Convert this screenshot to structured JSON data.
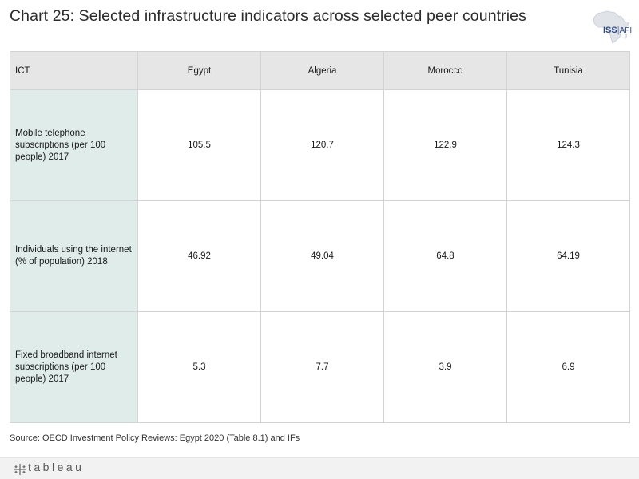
{
  "title": "Chart 25: Selected infrastructure indicators across selected peer countries",
  "logo": {
    "brand": "ISS",
    "separator": "|",
    "suffix": "AFI"
  },
  "chart_data": {
    "type": "table",
    "row_header_title": "ICT",
    "columns": [
      "Egypt",
      "Algeria",
      "Morocco",
      "Tunisia"
    ],
    "rows": [
      {
        "label": "Mobile telephone subscriptions (per 100 people) 2017",
        "values": [
          "105.5",
          "120.7",
          "122.9",
          "124.3"
        ]
      },
      {
        "label": "Individuals using the internet (% of population) 2018",
        "values": [
          "46.92",
          "49.04",
          "64.8",
          "64.19"
        ]
      },
      {
        "label": "Fixed broadband internet subscriptions (per 100 people) 2017",
        "values": [
          "5.3",
          "7.7",
          "3.9",
          "6.9"
        ]
      }
    ]
  },
  "source": "Source: OECD Investment Policy Reviews: Egypt 2020 (Table 8.1) and IFs",
  "footer": {
    "brand": "tableau"
  },
  "colors": {
    "header_bg": "#e6e6e6",
    "row_header_bg": "#dfecea",
    "border": "#d3d3d3",
    "logo_blue": "#2f4a86"
  }
}
